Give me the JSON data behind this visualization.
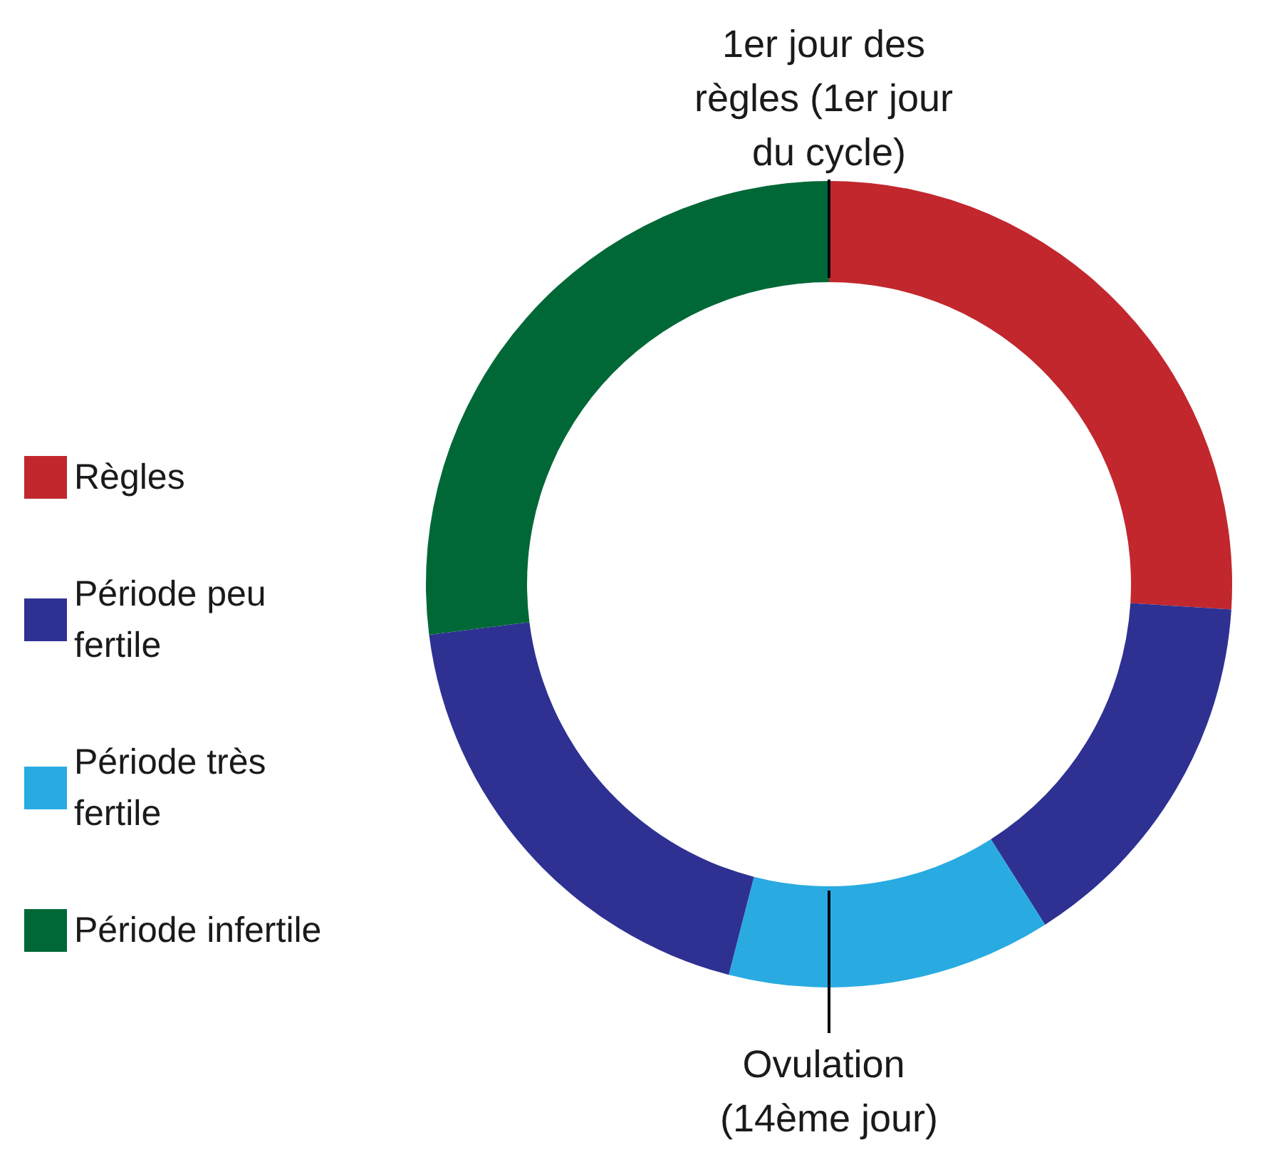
{
  "chart_data": {
    "type": "donut",
    "categories": [
      "Règles",
      "Période peu fertile",
      "Période très fertile",
      null,
      "Période infertile"
    ],
    "values": [
      26,
      15,
      13,
      19,
      27
    ],
    "colors": [
      "#c1272d",
      "#2e3192",
      "#29abe2",
      "#2e3192",
      "#006837"
    ],
    "legend": "left",
    "annotations": [
      "1er jour des règles (1er jour du cycle)",
      "Ovulation (14ème jour)"
    ]
  }
}
